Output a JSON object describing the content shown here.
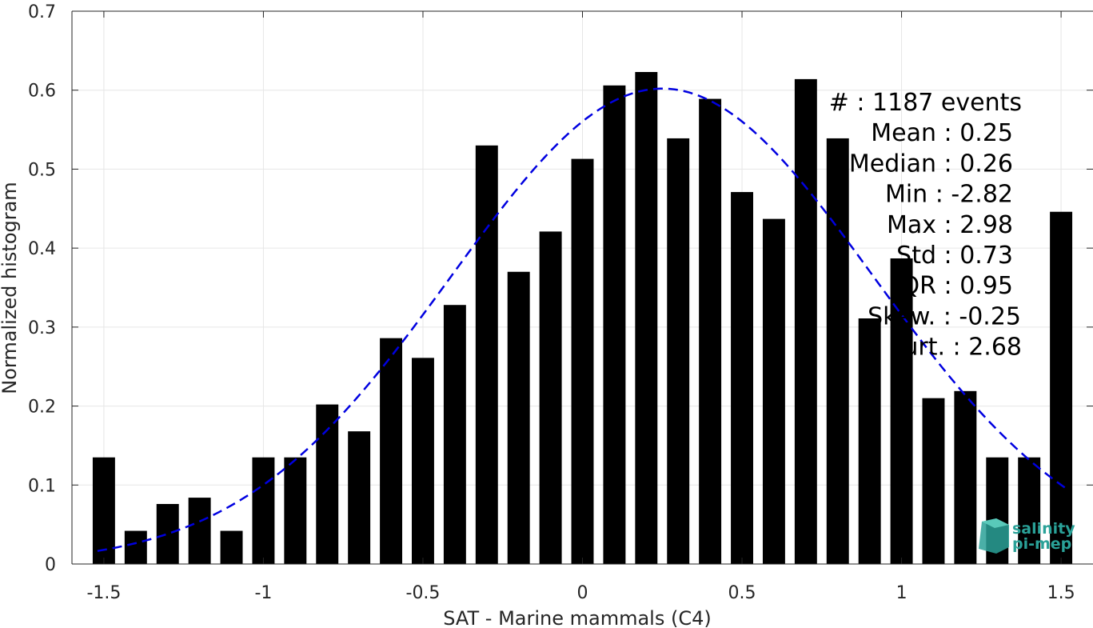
{
  "chart_data": {
    "type": "bar",
    "xlabel": "SAT - Marine mammals (C4)",
    "ylabel": "Normalized histogram",
    "xlim": [
      -1.6,
      1.6
    ],
    "ylim": [
      0,
      0.7
    ],
    "xticks": [
      -1.5,
      -1,
      -0.5,
      0,
      0.5,
      1,
      1.5
    ],
    "xtick_labels": [
      "-1.5",
      "-1",
      "-0.5",
      "0",
      "0.5",
      "1",
      "1.5"
    ],
    "yticks": [
      0,
      0.1,
      0.2,
      0.3,
      0.4,
      0.5,
      0.6,
      0.7
    ],
    "ytick_labels": [
      "0",
      "0.1",
      "0.2",
      "0.3",
      "0.4",
      "0.5",
      "0.6",
      "0.7"
    ],
    "grid": true,
    "bar_width": 0.07,
    "bin_centers": [
      -1.5,
      -1.4,
      -1.3,
      -1.2,
      -1.1,
      -1.0,
      -0.9,
      -0.8,
      -0.7,
      -0.6,
      -0.5,
      -0.4,
      -0.3,
      -0.2,
      -0.1,
      0.0,
      0.1,
      0.2,
      0.3,
      0.4,
      0.5,
      0.6,
      0.7,
      0.8,
      0.9,
      1.0,
      1.1,
      1.2,
      1.3,
      1.4,
      1.5
    ],
    "values": [
      0.135,
      0.042,
      0.076,
      0.084,
      0.042,
      0.135,
      0.135,
      0.202,
      0.168,
      0.286,
      0.261,
      0.328,
      0.53,
      0.37,
      0.421,
      0.513,
      0.606,
      0.623,
      0.539,
      0.589,
      0.471,
      0.437,
      0.614,
      0.539,
      0.311,
      0.387,
      0.21,
      0.219,
      0.135,
      0.135,
      0.446
    ],
    "bar_color": "#000000",
    "fit": {
      "type": "gaussian",
      "style": "dashed",
      "color": "#0000e0",
      "mean": 0.25,
      "std": 0.66,
      "peak": 0.602,
      "x_range": [
        -1.52,
        1.52
      ]
    }
  },
  "stats": {
    "lines": [
      "#  : 1187 events",
      "Mean : 0.25",
      "Median : 0.26",
      "Min : -2.82",
      "Max : 2.98",
      "Std : 0.73",
      "IQR : 0.95",
      "Skew. : -0.25",
      "Kurt. : 2.68"
    ]
  },
  "logo": {
    "line1": "salinity",
    "line2": "pi-mep",
    "color": "#2aa198"
  }
}
